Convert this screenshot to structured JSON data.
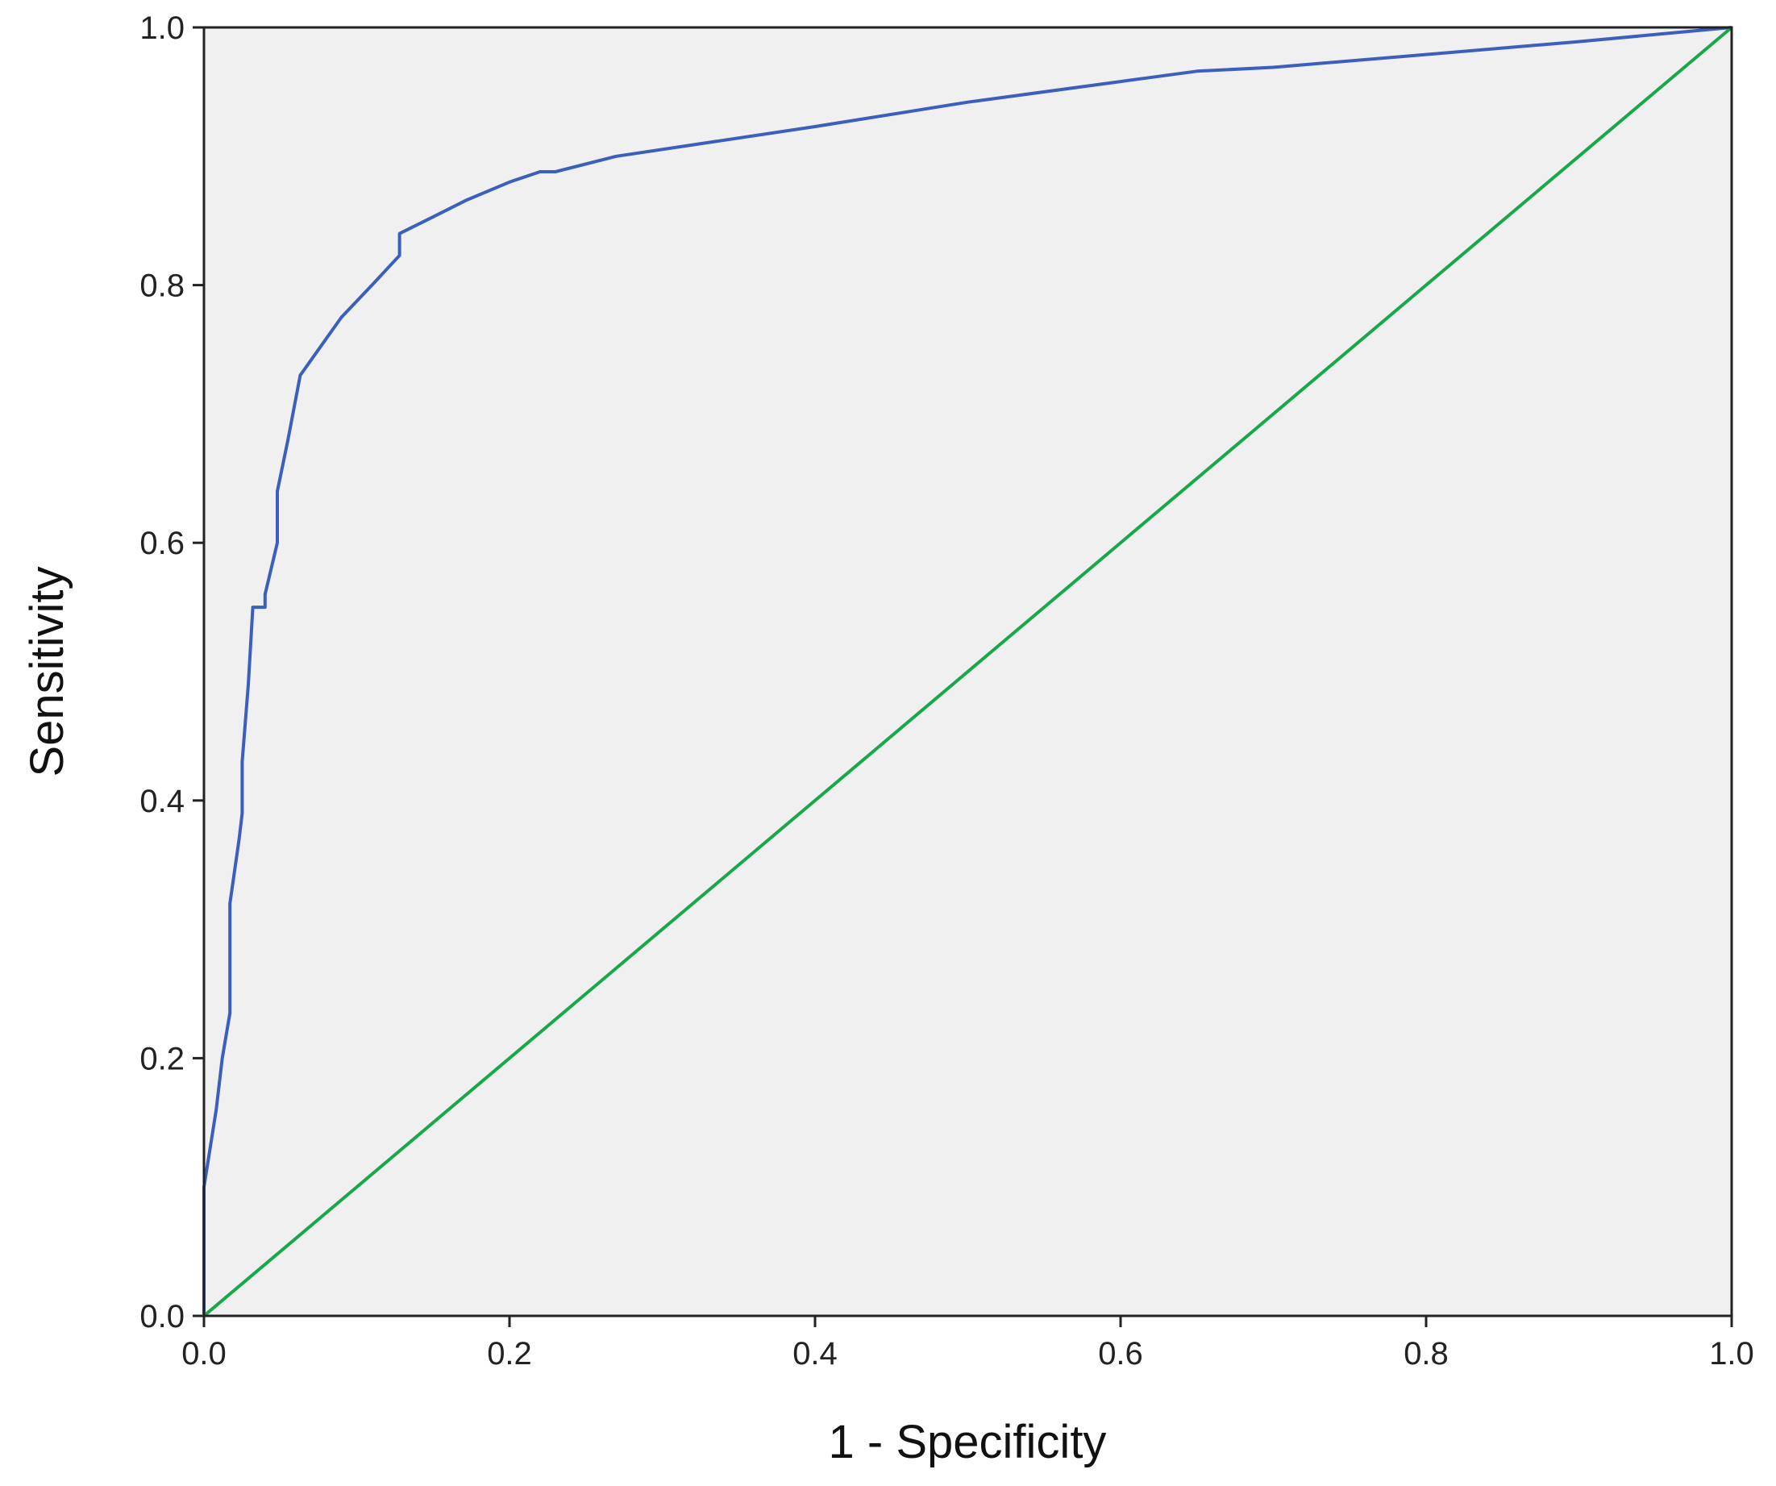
{
  "chart_data": {
    "type": "line",
    "title": "",
    "xlabel": "1 - Specificity",
    "ylabel": "Sensitivity",
    "xlim": [
      0.0,
      1.0
    ],
    "ylim": [
      0.0,
      1.0
    ],
    "xticks": [
      "0.0",
      "0.2",
      "0.4",
      "0.6",
      "0.8",
      "1.0"
    ],
    "yticks": [
      "0.0",
      "0.2",
      "0.4",
      "0.6",
      "0.8",
      "1.0"
    ],
    "grid": false,
    "legend": "none",
    "plot_background": "#f0f0f0",
    "series": [
      {
        "color": "#3b5fbd",
        "points": [
          [
            0.0,
            0.0
          ],
          [
            0.0,
            0.1
          ],
          [
            0.004,
            0.13
          ],
          [
            0.008,
            0.16
          ],
          [
            0.012,
            0.2
          ],
          [
            0.017,
            0.235
          ],
          [
            0.017,
            0.32
          ],
          [
            0.023,
            0.37
          ],
          [
            0.025,
            0.39
          ],
          [
            0.025,
            0.43
          ],
          [
            0.029,
            0.49
          ],
          [
            0.032,
            0.55
          ],
          [
            0.04,
            0.55
          ],
          [
            0.04,
            0.56
          ],
          [
            0.048,
            0.6
          ],
          [
            0.048,
            0.64
          ],
          [
            0.055,
            0.68
          ],
          [
            0.063,
            0.73
          ],
          [
            0.09,
            0.775
          ],
          [
            0.11,
            0.8
          ],
          [
            0.128,
            0.823
          ],
          [
            0.128,
            0.84
          ],
          [
            0.15,
            0.853
          ],
          [
            0.172,
            0.866
          ],
          [
            0.2,
            0.88
          ],
          [
            0.22,
            0.888
          ],
          [
            0.23,
            0.888
          ],
          [
            0.27,
            0.9
          ],
          [
            0.4,
            0.923
          ],
          [
            0.5,
            0.942
          ],
          [
            0.6,
            0.958
          ],
          [
            0.65,
            0.966
          ],
          [
            0.7,
            0.969
          ],
          [
            0.8,
            0.979
          ],
          [
            0.9,
            0.989
          ],
          [
            1.0,
            1.0
          ]
        ]
      },
      {
        "color": "#18a84a",
        "points": [
          [
            0.0,
            0.0
          ],
          [
            1.0,
            1.0
          ]
        ]
      }
    ]
  }
}
